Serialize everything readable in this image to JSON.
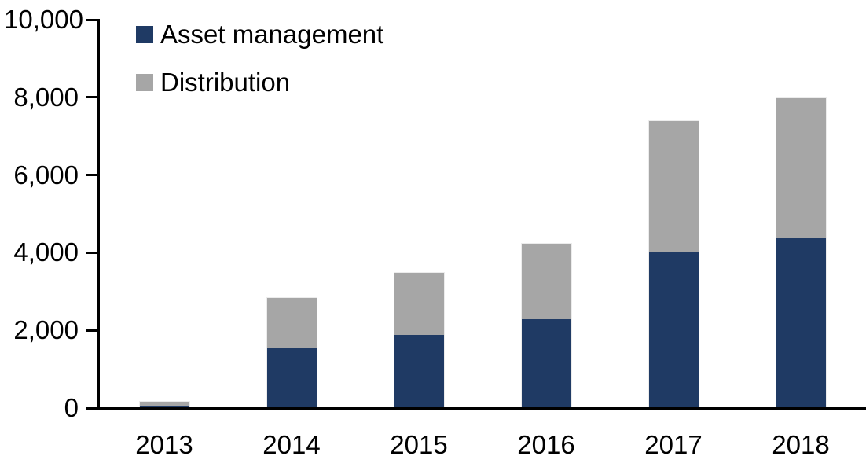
{
  "chart_data": {
    "type": "bar",
    "stacked": true,
    "title": "",
    "xlabel": "",
    "ylabel": "",
    "categories": [
      "2013",
      "2014",
      "2015",
      "2016",
      "2017",
      "2018"
    ],
    "series": [
      {
        "name": "Asset management",
        "color": "#1F3A64",
        "values": [
          80,
          1550,
          1900,
          2300,
          4050,
          4400
        ]
      },
      {
        "name": "Distribution",
        "color": "#A6A6A6",
        "values": [
          100,
          1300,
          1600,
          1950,
          3350,
          3600
        ]
      }
    ],
    "stack_totals": [
      180,
      2850,
      3500,
      4250,
      7400,
      8000
    ],
    "ylim": [
      0,
      10000
    ],
    "ytick_interval": 2000,
    "ytick_labels": [
      "0",
      "2,000",
      "4,000",
      "6,000",
      "8,000",
      "10,000"
    ],
    "grid": false,
    "legend_position": "top-left",
    "axis_color": "#000000",
    "text_color": "#000000",
    "background_color": "#FFFFFF"
  }
}
